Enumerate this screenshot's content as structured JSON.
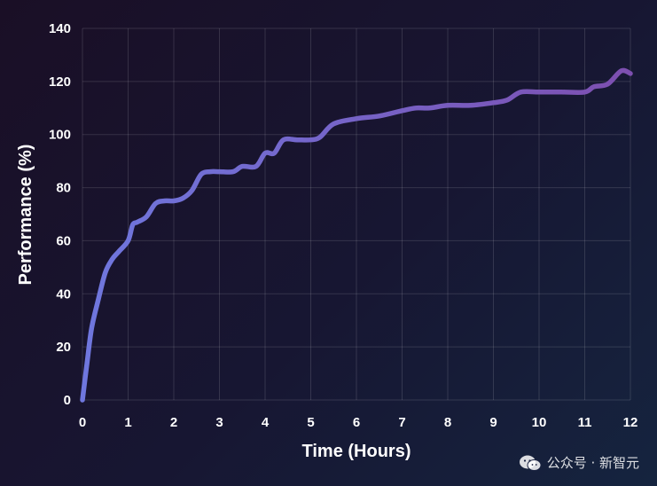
{
  "chart_data": {
    "type": "line",
    "title": "",
    "xlabel": "Time (Hours)",
    "ylabel": "Performance (%)",
    "xlim": [
      0,
      12
    ],
    "ylim": [
      0,
      140
    ],
    "xticks": [
      "0",
      "1",
      "2",
      "3",
      "4",
      "5",
      "6",
      "7",
      "8",
      "9",
      "10",
      "11",
      "12"
    ],
    "yticks": [
      "0",
      "20",
      "40",
      "60",
      "80",
      "100",
      "120",
      "140"
    ],
    "grid": true,
    "line_gradient": [
      "#6f77de",
      "#7d4fb0"
    ],
    "series": [
      {
        "x": [
          0,
          0.1,
          0.2,
          0.35,
          0.5,
          0.65,
          0.8,
          1.0,
          1.1,
          1.2,
          1.4,
          1.6,
          1.8,
          2.0,
          2.2,
          2.4,
          2.6,
          2.8,
          3.0,
          3.3,
          3.5,
          3.8,
          4.0,
          4.2,
          4.4,
          4.7,
          5.0,
          5.2,
          5.5,
          6.0,
          6.5,
          7.0,
          7.3,
          7.6,
          8.0,
          8.5,
          9.0,
          9.3,
          9.6,
          10.0,
          10.5,
          11.0,
          11.2,
          11.5,
          11.8,
          12.0
        ],
        "y": [
          0,
          14,
          27,
          38,
          48,
          53,
          56,
          60,
          66,
          67,
          69,
          74,
          75,
          75,
          76,
          79,
          85,
          86,
          86,
          86,
          88,
          88,
          93,
          93,
          98,
          98,
          98,
          99,
          104,
          106,
          107,
          109,
          110,
          110,
          111,
          111,
          112,
          113,
          116,
          116,
          116,
          116,
          118,
          119,
          124,
          123
        ]
      }
    ]
  },
  "watermark": {
    "icon": "wechat-icon",
    "text": "公众号 · 新智元"
  }
}
